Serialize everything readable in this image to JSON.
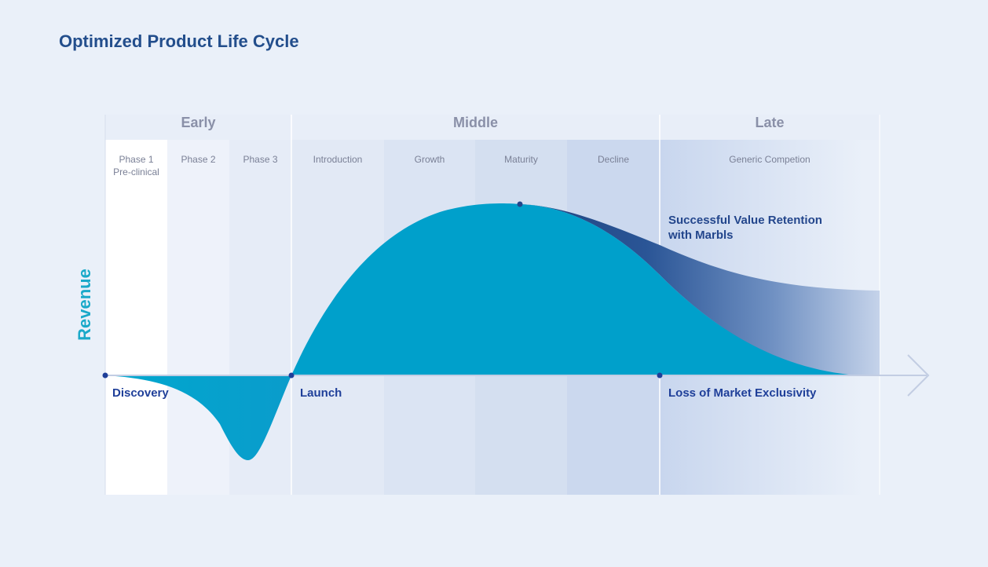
{
  "title": "Optimized Product Life Cycle",
  "axis": {
    "y_label": "Revenue"
  },
  "stages": [
    {
      "id": "early",
      "label": "Early"
    },
    {
      "id": "middle",
      "label": "Middle"
    },
    {
      "id": "late",
      "label": "Late"
    }
  ],
  "phases": [
    {
      "id": "phase1",
      "lines": [
        "Phase 1",
        "Pre-clinical"
      ]
    },
    {
      "id": "phase2",
      "lines": [
        "Phase 2"
      ]
    },
    {
      "id": "phase3",
      "lines": [
        "Phase 3"
      ]
    },
    {
      "id": "introduction",
      "lines": [
        "Introduction"
      ]
    },
    {
      "id": "growth",
      "lines": [
        "Growth"
      ]
    },
    {
      "id": "maturity",
      "lines": [
        "Maturity"
      ]
    },
    {
      "id": "decline",
      "lines": [
        "Decline"
      ]
    },
    {
      "id": "generic",
      "lines": [
        "Generic Competion"
      ]
    }
  ],
  "milestones": {
    "discovery": "Discovery",
    "launch": "Launch",
    "loss": "Loss of Market Exclusivity"
  },
  "callout": {
    "line1": "Successful Value Retention",
    "line2": "with Marbls"
  },
  "colors": {
    "title": "#234e8c",
    "revenue_curve": "#00a2cc",
    "retention_band": "#2a4f90",
    "axis_label": "#1aa9c9",
    "milestone_text": "#1f3f99"
  }
}
